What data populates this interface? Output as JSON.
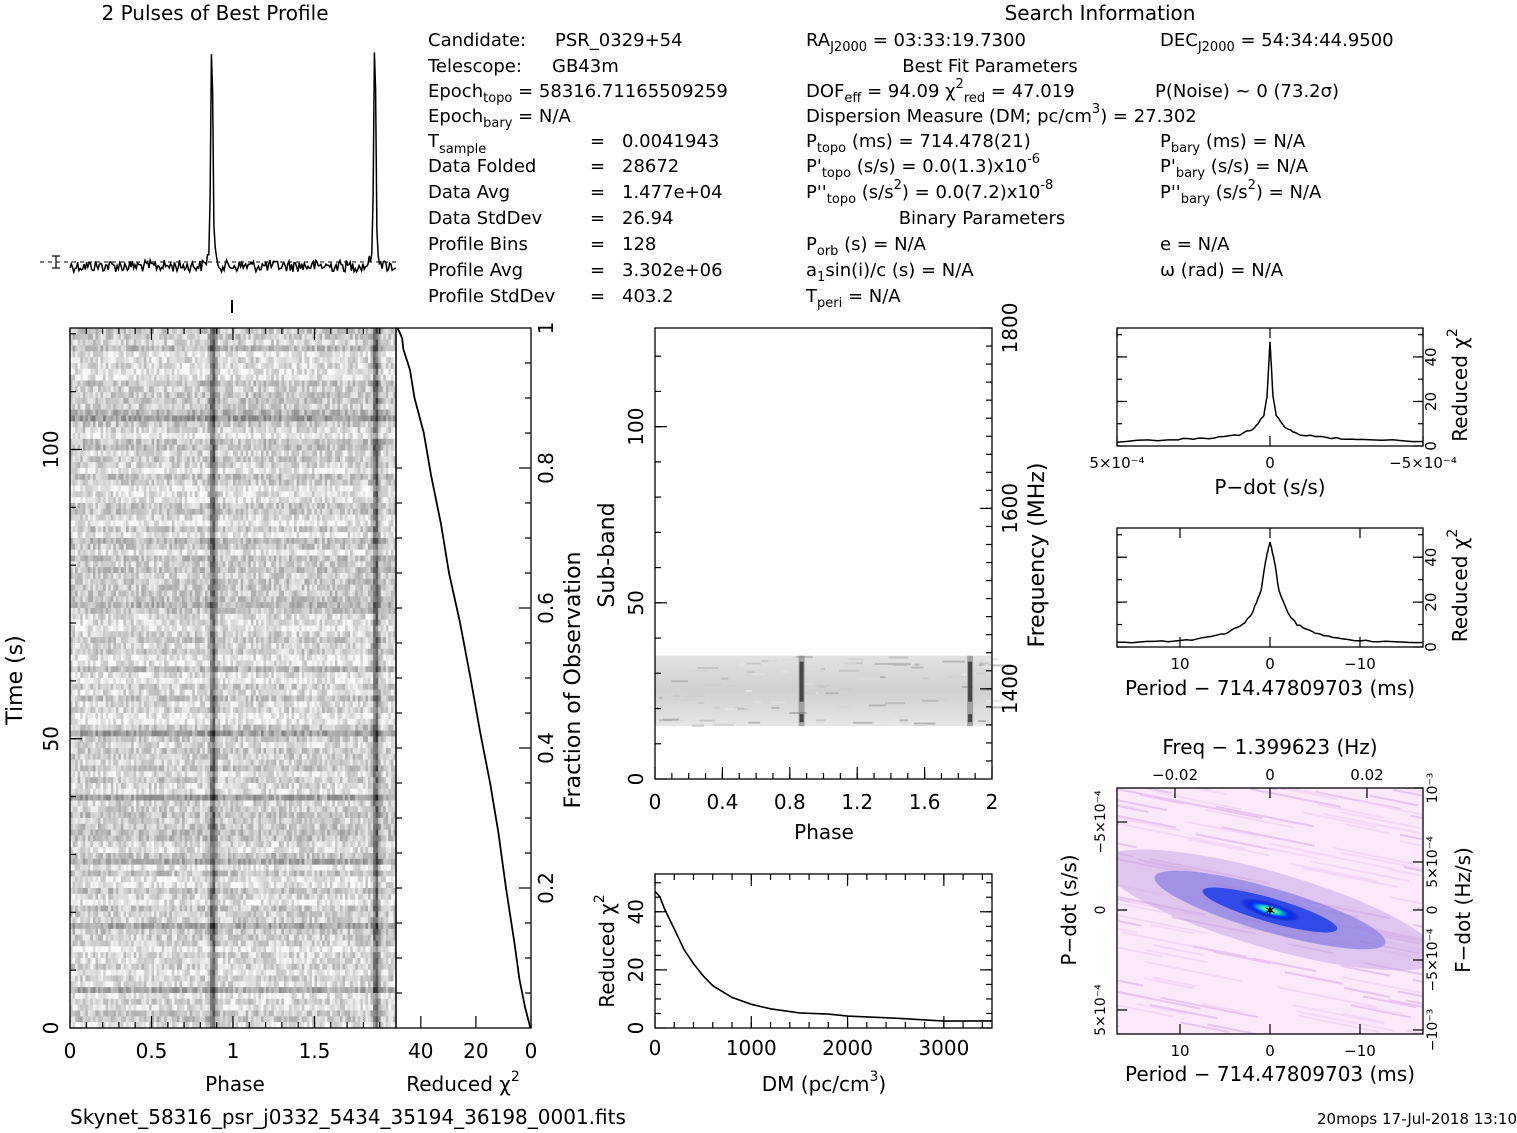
{
  "profile": {
    "title": "2 Pulses of Best Profile"
  },
  "search_info": {
    "title": "Search Information",
    "best_fit_title": "Best Fit Parameters",
    "binary_title": "Binary Parameters",
    "candidate_label": "Candidate:",
    "candidate": "PSR_0329+54",
    "telescope_label": "Telescope:",
    "telescope": "GB43m",
    "epoch_topo": "58316.71165509259",
    "epoch_bary": "N/A",
    "t_sample": "0.0041943",
    "data_folded_label": "Data Folded",
    "data_folded": "28672",
    "data_avg_label": "Data Avg",
    "data_avg": "1.477e+04",
    "data_stddev_label": "Data StdDev",
    "data_stddev": "26.94",
    "profile_bins_label": "Profile Bins",
    "profile_bins": "128",
    "profile_avg_label": "Profile Avg",
    "profile_avg": "3.302e+06",
    "profile_stddev_label": "Profile StdDev",
    "profile_stddev": "403.2",
    "ra": "03:33:19.7300",
    "dec": "54:34:44.9500",
    "dof_eff": "94.09",
    "chi2_red": "47.019",
    "p_noise": "P(Noise) ~ 0   (73.2σ)",
    "dm_label": "Dispersion Measure (DM; pc/cm",
    "dm": "27.302",
    "p_topo": "714.478(21)",
    "pd_topo": "0.0(1.3)x10",
    "pd_topo_exp": "-6",
    "pdd_topo": "0.0(7.2)x10",
    "pdd_topo_exp": "-8",
    "p_bary": "N/A",
    "pd_bary": "N/A",
    "pdd_bary": "N/A",
    "p_orb": "N/A",
    "a1sini": "N/A",
    "t_peri": "N/A",
    "ecc": "N/A",
    "omega": "N/A"
  },
  "footer": {
    "filename": "Skynet_58316_psr_j0332_5434_35194_36198_0001.fits",
    "stamp": "20mops 17-Jul-2018 13:10"
  },
  "chart_data": [
    {
      "id": "profile",
      "type": "line",
      "title": "2 Pulses of Best Profile",
      "x": "phase 0-2",
      "peaks_at_phase": [
        0.87,
        1.87
      ]
    },
    {
      "id": "time_phase",
      "type": "heatmap",
      "xlabel": "Phase",
      "ylabel": "Time (s)",
      "xticks": [
        "0",
        "0.5",
        "1",
        "1.5"
      ],
      "yticks": [
        "0",
        "50",
        "100"
      ],
      "xlim": [
        0,
        2
      ],
      "ylim": [
        0,
        121
      ],
      "pulse_phases": [
        0.87,
        1.87
      ]
    },
    {
      "id": "chi2_vs_fraction",
      "type": "line",
      "xlabel": "Reduced χ",
      "ylabel": "Fraction of Observation",
      "xticks": [
        "40",
        "20",
        "0"
      ],
      "yticks": [
        "0.2",
        "0.4",
        "0.6",
        "0.8",
        "1"
      ],
      "xlim": [
        49,
        0
      ],
      "ylim": [
        0,
        1
      ],
      "x": [
        0,
        2,
        4,
        6,
        9,
        12,
        15,
        18,
        22,
        26,
        30,
        33,
        36,
        39,
        42,
        44,
        46,
        47,
        48,
        48.5
      ],
      "y": [
        0,
        0.03,
        0.07,
        0.12,
        0.2,
        0.28,
        0.35,
        0.42,
        0.5,
        0.58,
        0.65,
        0.72,
        0.79,
        0.85,
        0.9,
        0.94,
        0.97,
        0.985,
        0.995,
        1
      ]
    },
    {
      "id": "subband_phase",
      "type": "heatmap",
      "xlabel": "Phase",
      "ylabel": "Sub-band",
      "y2label": "Frequency (MHz)",
      "xticks": [
        "0",
        "0.4",
        "0.8",
        "1.2",
        "1.6",
        "2"
      ],
      "yticks": [
        "0",
        "50",
        "100"
      ],
      "y2ticks": [
        "1400",
        "1600",
        "1800"
      ],
      "xlim": [
        0,
        2
      ],
      "ylim": [
        0,
        128
      ],
      "y2lim": [
        1300,
        1800
      ],
      "active_subbands": [
        15,
        35
      ],
      "pulse_phases": [
        0.87,
        1.87
      ]
    },
    {
      "id": "chi2_vs_dm",
      "type": "line",
      "xlabel": "DM (pc/cm",
      "ylabel": "Reduced χ",
      "xticks": [
        "0",
        "1000",
        "2000",
        "3000"
      ],
      "yticks": [
        "0",
        "20",
        "40"
      ],
      "xlim": [
        0,
        3500
      ],
      "ylim": [
        0,
        53
      ],
      "x": [
        0,
        50,
        100,
        200,
        300,
        400,
        500,
        600,
        800,
        1000,
        1200,
        1500,
        1800,
        2000,
        2500,
        3000,
        3500
      ],
      "y": [
        47,
        45,
        41,
        34,
        27,
        22,
        18,
        14.5,
        10.5,
        8,
        6.5,
        5.2,
        4.8,
        4.2,
        3.3,
        2.6,
        2.2
      ]
    },
    {
      "id": "chi2_vs_pdot",
      "type": "line",
      "xlabel": "P−dot (s/s)",
      "ylabel": "Reduced χ",
      "xticks": [
        "5×10⁻⁴",
        "0",
        "−5×10⁻⁴"
      ],
      "yticks": [
        "0",
        "20",
        "40"
      ],
      "xlim": [
        0.0005,
        -0.0005
      ],
      "ylim": [
        0,
        53
      ],
      "x": [
        0.0005,
        0.0003,
        0.0002,
        0.0001,
        5e-05,
        2e-05,
        1e-05,
        0,
        -1e-05,
        -2e-05,
        -5e-05,
        -0.0001,
        -0.0002,
        -0.0003,
        -0.0005
      ],
      "y": [
        2,
        3,
        3.5,
        5,
        8,
        14,
        22,
        47,
        22,
        14,
        8,
        5,
        3.5,
        3,
        2
      ]
    },
    {
      "id": "chi2_vs_period",
      "type": "line",
      "xlabel": "Period − 714.47809703 (ms)",
      "ylabel": "Reduced χ",
      "xticks": [
        "10",
        "0",
        "−10"
      ],
      "yticks": [
        "0",
        "20",
        "40"
      ],
      "xlim": [
        17,
        -17
      ],
      "ylim": [
        0,
        53
      ],
      "x": [
        17,
        12,
        8,
        5,
        3,
        2,
        1,
        0.5,
        0,
        -0.5,
        -1,
        -2,
        -3,
        -5,
        -8,
        -12,
        -17
      ],
      "y": [
        2,
        2.5,
        3.5,
        6,
        10,
        15,
        25,
        38,
        47,
        38,
        25,
        15,
        10,
        6,
        3.5,
        2.5,
        2
      ]
    },
    {
      "id": "pdot_period_map",
      "type": "heatmap",
      "title": "Freq − 1.399623 (Hz)",
      "xlabel": "Period − 714.47809703 (ms)",
      "ylabel": "P−dot (s/s)",
      "y2label": "F−dot (Hz/s)",
      "xticks": [
        "10",
        "0",
        "−10"
      ],
      "x2ticks": [
        "−0.02",
        "0",
        "0.02"
      ],
      "yticks": [
        "−5×10⁻⁴",
        "0",
        "5×10⁻⁴"
      ],
      "y2ticks": [
        "10⁻³",
        "5×10⁻⁴",
        "0",
        "−5×10⁻⁴",
        "−10⁻³"
      ],
      "xlim": [
        17,
        -17
      ],
      "ylim": [
        -0.0007,
        0.0007
      ],
      "peak": {
        "period": 0,
        "pdot": 0
      }
    }
  ]
}
